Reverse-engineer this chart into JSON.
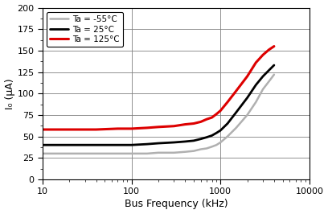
{
  "xlabel": "Bus Frequency (kHz)",
  "ylabel": "I₀ (μA)",
  "xlim": [
    10,
    10000
  ],
  "ylim": [
    0,
    200
  ],
  "yticks": [
    0,
    25,
    50,
    75,
    100,
    125,
    150,
    175,
    200
  ],
  "xticks": [
    10,
    100,
    1000,
    10000
  ],
  "xticklabels": [
    "10",
    "100",
    "1000",
    "10000"
  ],
  "legend": [
    {
      "label": "Ta = -55°C",
      "color": "#b0b0b0",
      "lw": 1.8
    },
    {
      "label": "Ta = 25°C",
      "color": "#000000",
      "lw": 2.0
    },
    {
      "label": "Ta = 125°C",
      "color": "#dd0000",
      "lw": 2.2
    }
  ],
  "series": {
    "cold": {
      "freq": [
        10,
        20,
        40,
        70,
        100,
        150,
        200,
        300,
        400,
        500,
        600,
        700,
        800,
        900,
        1000,
        1200,
        1500,
        2000,
        2500,
        3000,
        3500,
        4000
      ],
      "current": [
        30,
        30,
        30,
        30,
        30,
        30,
        31,
        31,
        32,
        33,
        35,
        36,
        38,
        40,
        43,
        50,
        60,
        75,
        90,
        105,
        114,
        122
      ]
    },
    "room": {
      "freq": [
        10,
        20,
        40,
        70,
        100,
        150,
        200,
        300,
        400,
        500,
        600,
        700,
        800,
        900,
        1000,
        1200,
        1500,
        2000,
        2500,
        3000,
        3500,
        4000
      ],
      "current": [
        40,
        40,
        40,
        40,
        40,
        41,
        42,
        43,
        44,
        45,
        47,
        49,
        51,
        54,
        57,
        65,
        78,
        95,
        110,
        120,
        127,
        133
      ]
    },
    "hot": {
      "freq": [
        10,
        20,
        40,
        70,
        100,
        150,
        200,
        300,
        400,
        500,
        600,
        700,
        800,
        900,
        1000,
        1200,
        1500,
        2000,
        2500,
        3000,
        3500,
        4000
      ],
      "current": [
        58,
        58,
        58,
        59,
        59,
        60,
        61,
        62,
        64,
        65,
        67,
        70,
        72,
        76,
        80,
        90,
        103,
        120,
        136,
        145,
        151,
        155
      ]
    }
  },
  "background_color": "#ffffff",
  "grid_color": "#808080",
  "grid_lw": 0.6
}
